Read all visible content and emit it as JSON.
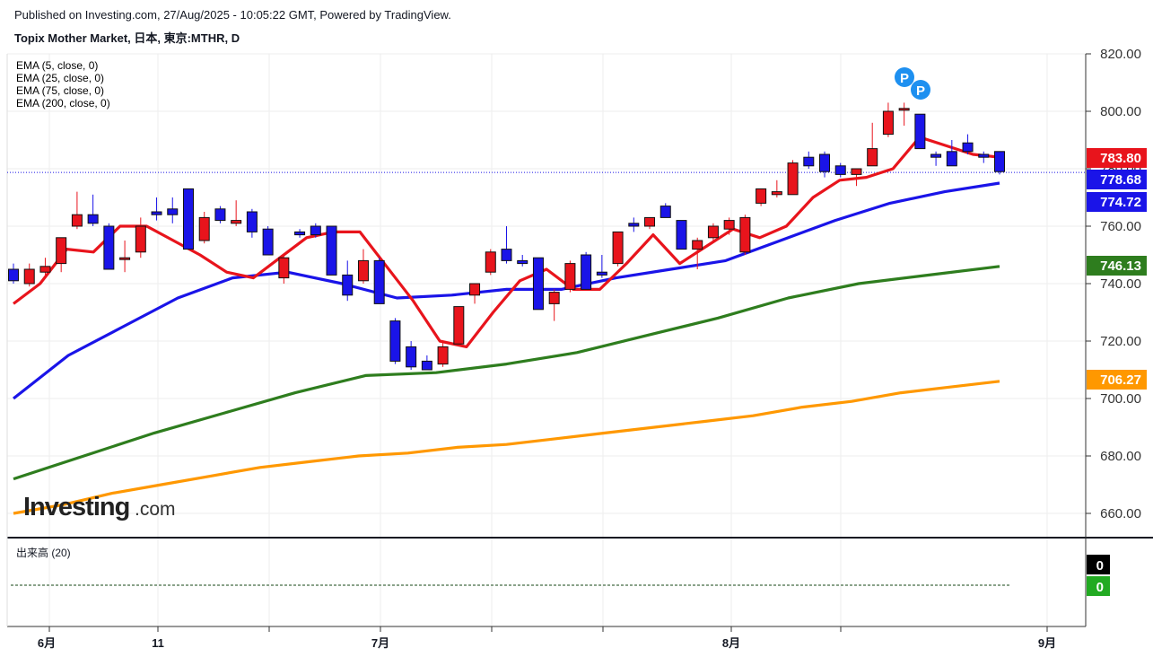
{
  "header": {
    "published": "Published on Investing.com, 27/Aug/2025 - 10:05:22 GMT, Powered by TradingView.",
    "title": "Topix Mother Market, 日本, 東京:MTHR, D"
  },
  "legend": [
    "EMA (5, close, 0)",
    "EMA (25, close, 0)",
    "EMA (75, close, 0)",
    "EMA (200, close, 0)"
  ],
  "volume_label": "出来高 (20)",
  "logo": {
    "brand": "Investing",
    "suffix": ".com"
  },
  "colors": {
    "up": "#e8141c",
    "down": "#1a14e8",
    "ema5": "#e8141c",
    "ema25": "#1a14e8",
    "ema75": "#2e7d1e",
    "ema200": "#ff9800",
    "price_line": "#1a14e8",
    "grid": "#eeeeee"
  },
  "chart_data": {
    "type": "candlestick",
    "y_axis": {
      "min": 650,
      "max": 820,
      "ticks": [
        660,
        680,
        700,
        720,
        740,
        760,
        780,
        800,
        820
      ]
    },
    "x_axis_labels": [
      "6月",
      "11",
      "7月",
      "8月",
      "9月"
    ],
    "price_badges": [
      {
        "value": "783.80",
        "color": "#e8141c"
      },
      {
        "value": "778.68",
        "color": "#1a14e8"
      },
      {
        "value": "774.72",
        "color": "#1a14e8"
      },
      {
        "value": "746.13",
        "color": "#2e7d1e"
      },
      {
        "value": "706.27",
        "color": "#ff9800"
      }
    ],
    "volume_badges": [
      {
        "value": "0",
        "color": "#000000"
      },
      {
        "value": "0",
        "color": "#22aa22"
      }
    ],
    "candles": [
      {
        "date": "2025-05-29",
        "open": 745,
        "high": 747,
        "low": 740,
        "close": 741
      },
      {
        "date": "2025-05-30",
        "open": 740,
        "high": 747,
        "low": 739,
        "close": 745
      },
      {
        "date": "2025-06-02",
        "open": 744,
        "high": 749,
        "low": 743,
        "close": 746
      },
      {
        "date": "2025-06-03",
        "open": 747,
        "high": 756,
        "low": 744,
        "close": 756
      },
      {
        "date": "2025-06-04",
        "open": 760,
        "high": 772,
        "low": 759,
        "close": 764
      },
      {
        "date": "2025-06-05",
        "open": 764,
        "high": 771,
        "low": 760,
        "close": 761
      },
      {
        "date": "2025-06-06",
        "open": 760,
        "high": 761,
        "low": 745,
        "close": 745
      },
      {
        "date": "2025-06-09",
        "open": 749,
        "high": 755,
        "low": 744,
        "close": 749
      },
      {
        "date": "2025-06-10",
        "open": 751,
        "high": 763,
        "low": 749,
        "close": 760
      },
      {
        "date": "2025-06-11",
        "open": 765,
        "high": 770,
        "low": 762,
        "close": 764
      },
      {
        "date": "2025-06-12",
        "open": 766,
        "high": 770,
        "low": 761,
        "close": 764
      },
      {
        "date": "2025-06-13",
        "open": 773,
        "high": 773,
        "low": 752,
        "close": 752
      },
      {
        "date": "2025-06-16",
        "open": 755,
        "high": 765,
        "low": 754,
        "close": 763
      },
      {
        "date": "2025-06-17",
        "open": 766,
        "high": 767,
        "low": 761,
        "close": 762
      },
      {
        "date": "2025-06-18",
        "open": 761,
        "high": 769,
        "low": 760,
        "close": 762
      },
      {
        "date": "2025-06-19",
        "open": 765,
        "high": 766,
        "low": 756,
        "close": 758
      },
      {
        "date": "2025-06-20",
        "open": 759,
        "high": 760,
        "low": 750,
        "close": 750
      },
      {
        "date": "2025-06-23",
        "open": 742,
        "high": 750,
        "low": 740,
        "close": 749
      },
      {
        "date": "2025-06-24",
        "open": 758,
        "high": 759,
        "low": 756,
        "close": 757
      },
      {
        "date": "2025-06-25",
        "open": 760,
        "high": 761,
        "low": 756,
        "close": 757
      },
      {
        "date": "2025-06-26",
        "open": 760,
        "high": 760,
        "low": 743,
        "close": 743
      },
      {
        "date": "2025-06-27",
        "open": 743,
        "high": 748,
        "low": 734,
        "close": 736
      },
      {
        "date": "2025-06-30",
        "open": 741,
        "high": 752,
        "low": 740,
        "close": 748
      },
      {
        "date": "2025-07-01",
        "open": 748,
        "high": 749,
        "low": 733,
        "close": 733
      },
      {
        "date": "2025-07-02",
        "open": 727,
        "high": 728,
        "low": 712,
        "close": 713
      },
      {
        "date": "2025-07-03",
        "open": 718,
        "high": 720,
        "low": 710,
        "close": 711
      },
      {
        "date": "2025-07-04",
        "open": 713,
        "high": 715,
        "low": 710,
        "close": 710
      },
      {
        "date": "2025-07-07",
        "open": 712,
        "high": 720,
        "low": 711,
        "close": 718
      },
      {
        "date": "2025-07-08",
        "open": 719,
        "high": 732,
        "low": 719,
        "close": 732
      },
      {
        "date": "2025-07-09",
        "open": 736,
        "high": 740,
        "low": 733,
        "close": 740
      },
      {
        "date": "2025-07-10",
        "open": 744,
        "high": 752,
        "low": 743,
        "close": 751
      },
      {
        "date": "2025-07-11",
        "open": 752,
        "high": 760,
        "low": 747,
        "close": 748
      },
      {
        "date": "2025-07-14",
        "open": 748,
        "high": 750,
        "low": 746,
        "close": 747
      },
      {
        "date": "2025-07-15",
        "open": 749,
        "high": 749,
        "low": 731,
        "close": 731
      },
      {
        "date": "2025-07-16",
        "open": 733,
        "high": 738,
        "low": 727,
        "close": 737
      },
      {
        "date": "2025-07-17",
        "open": 738,
        "high": 748,
        "low": 737,
        "close": 747
      },
      {
        "date": "2025-07-18",
        "open": 750,
        "high": 751,
        "low": 738,
        "close": 738
      },
      {
        "date": "2025-07-22",
        "open": 744,
        "high": 750,
        "low": 742,
        "close": 743
      },
      {
        "date": "2025-07-23",
        "open": 747,
        "high": 758,
        "low": 746,
        "close": 758
      },
      {
        "date": "2025-07-24",
        "open": 761,
        "high": 763,
        "low": 758,
        "close": 760
      },
      {
        "date": "2025-07-25",
        "open": 760,
        "high": 763,
        "low": 759,
        "close": 763
      },
      {
        "date": "2025-07-28",
        "open": 767,
        "high": 768,
        "low": 763,
        "close": 763
      },
      {
        "date": "2025-07-29",
        "open": 762,
        "high": 762,
        "low": 752,
        "close": 752
      },
      {
        "date": "2025-07-30",
        "open": 752,
        "high": 756,
        "low": 745,
        "close": 755
      },
      {
        "date": "2025-07-31",
        "open": 756,
        "high": 761,
        "low": 755,
        "close": 760
      },
      {
        "date": "2025-08-01",
        "open": 759,
        "high": 763,
        "low": 757,
        "close": 762
      },
      {
        "date": "2025-08-04",
        "open": 751,
        "high": 764,
        "low": 750,
        "close": 763
      },
      {
        "date": "2025-08-05",
        "open": 768,
        "high": 773,
        "low": 767,
        "close": 773
      },
      {
        "date": "2025-08-06",
        "open": 771,
        "high": 776,
        "low": 770,
        "close": 772
      },
      {
        "date": "2025-08-07",
        "open": 771,
        "high": 783,
        "low": 771,
        "close": 782
      },
      {
        "date": "2025-08-08",
        "open": 784,
        "high": 786,
        "low": 780,
        "close": 781
      },
      {
        "date": "2025-08-12",
        "open": 785,
        "high": 786,
        "low": 777,
        "close": 779
      },
      {
        "date": "2025-08-13",
        "open": 781,
        "high": 782,
        "low": 777,
        "close": 778
      },
      {
        "date": "2025-08-14",
        "open": 778,
        "high": 780,
        "low": 774,
        "close": 780
      },
      {
        "date": "2025-08-15",
        "open": 781,
        "high": 796,
        "low": 781,
        "close": 787
      },
      {
        "date": "2025-08-18",
        "open": 792,
        "high": 803,
        "low": 791,
        "close": 800
      },
      {
        "date": "2025-08-19",
        "open": 801,
        "high": 803,
        "low": 795,
        "close": 801
      },
      {
        "date": "2025-08-20",
        "open": 799,
        "high": 799,
        "low": 787,
        "close": 787
      },
      {
        "date": "2025-08-21",
        "open": 785,
        "high": 786,
        "low": 781,
        "close": 784
      },
      {
        "date": "2025-08-22",
        "open": 786,
        "high": 790,
        "low": 781,
        "close": 781
      },
      {
        "date": "2025-08-25",
        "open": 789,
        "high": 792,
        "low": 785,
        "close": 786
      },
      {
        "date": "2025-08-26",
        "open": 785,
        "high": 786,
        "low": 782,
        "close": 784
      },
      {
        "date": "2025-08-27",
        "open": 786,
        "high": 786,
        "low": 778,
        "close": 779
      }
    ],
    "ema5": [
      733,
      740,
      752,
      751,
      760,
      760,
      755,
      750,
      744,
      742,
      749,
      756,
      758,
      758,
      746,
      734,
      720,
      718,
      730,
      741,
      745,
      738,
      738,
      747,
      757,
      747,
      753,
      759,
      756,
      760,
      770,
      776,
      777,
      780,
      791,
      788,
      785,
      784
    ],
    "ema25": [
      700,
      715,
      725,
      735,
      742,
      744,
      740,
      735,
      736,
      738,
      738,
      742,
      745,
      748,
      755,
      762,
      768,
      772,
      775
    ],
    "ema75": [
      672,
      680,
      688,
      695,
      702,
      708,
      709,
      712,
      716,
      722,
      728,
      735,
      740,
      743,
      746
    ],
    "ema200": [
      660,
      663,
      667,
      670,
      673,
      676,
      678,
      680,
      681,
      683,
      684,
      686,
      688,
      690,
      692,
      694,
      697,
      699,
      702,
      704,
      706
    ]
  }
}
